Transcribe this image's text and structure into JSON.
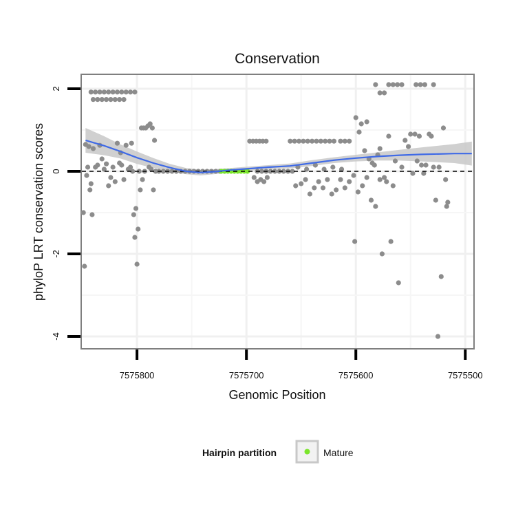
{
  "chart_data": {
    "type": "scatter",
    "title": "Conservation",
    "xlabel": "Genomic Position",
    "ylabel": "phyloP LRT conservation scores",
    "xlim": [
      7575851,
      7575492
    ],
    "ylim": [
      -4.3,
      2.35
    ],
    "x_reversed": true,
    "xticks": [
      7575800,
      7575700,
      7575600,
      7575500
    ],
    "xtick_labels": [
      "7575800",
      "7575700",
      "7575600",
      "7575500"
    ],
    "yticks": [
      2,
      0,
      -2,
      -4
    ],
    "ytick_labels": [
      "2",
      "0",
      "-2",
      "-4"
    ],
    "reference_line": {
      "y": 0,
      "style": "dashed"
    },
    "grid": true,
    "legend": {
      "title": "Hairpin partition",
      "entries": [
        {
          "label": "Mature",
          "color": "#7be52b"
        }
      ],
      "position": "bottom"
    },
    "colors": {
      "points": "#8c8c8c",
      "smooth": "#3f6ae6",
      "band": "#c8c8c8",
      "mature": "#7be52b"
    },
    "smooth_curve": [
      [
        7575847,
        0.75
      ],
      [
        7575830,
        0.62
      ],
      [
        7575815,
        0.48
      ],
      [
        7575800,
        0.33
      ],
      [
        7575785,
        0.2
      ],
      [
        7575770,
        0.09
      ],
      [
        7575755,
        0.0
      ],
      [
        7575742,
        -0.03
      ],
      [
        7575730,
        -0.01
      ],
      [
        7575715,
        0.03
      ],
      [
        7575700,
        0.06
      ],
      [
        7575680,
        0.1
      ],
      [
        7575660,
        0.13
      ],
      [
        7575640,
        0.2
      ],
      [
        7575620,
        0.27
      ],
      [
        7575600,
        0.32
      ],
      [
        7575580,
        0.36
      ],
      [
        7575560,
        0.39
      ],
      [
        7575540,
        0.41
      ],
      [
        7575510,
        0.43
      ],
      [
        7575494,
        0.43
      ]
    ],
    "band_upper": [
      [
        7575847,
        1.05
      ],
      [
        7575830,
        0.85
      ],
      [
        7575815,
        0.65
      ],
      [
        7575800,
        0.48
      ],
      [
        7575785,
        0.32
      ],
      [
        7575770,
        0.18
      ],
      [
        7575755,
        0.08
      ],
      [
        7575742,
        0.04
      ],
      [
        7575730,
        0.05
      ],
      [
        7575715,
        0.08
      ],
      [
        7575700,
        0.11
      ],
      [
        7575680,
        0.15
      ],
      [
        7575660,
        0.19
      ],
      [
        7575640,
        0.27
      ],
      [
        7575620,
        0.34
      ],
      [
        7575600,
        0.4
      ],
      [
        7575580,
        0.46
      ],
      [
        7575560,
        0.52
      ],
      [
        7575540,
        0.58
      ],
      [
        7575510,
        0.66
      ],
      [
        7575494,
        0.72
      ]
    ],
    "band_lower": [
      [
        7575847,
        0.45
      ],
      [
        7575830,
        0.39
      ],
      [
        7575815,
        0.31
      ],
      [
        7575800,
        0.18
      ],
      [
        7575785,
        0.08
      ],
      [
        7575770,
        0.0
      ],
      [
        7575755,
        -0.07
      ],
      [
        7575742,
        -0.1
      ],
      [
        7575730,
        -0.07
      ],
      [
        7575715,
        -0.02
      ],
      [
        7575700,
        0.01
      ],
      [
        7575680,
        0.05
      ],
      [
        7575660,
        0.07
      ],
      [
        7575640,
        0.13
      ],
      [
        7575620,
        0.2
      ],
      [
        7575600,
        0.24
      ],
      [
        7575580,
        0.26
      ],
      [
        7575560,
        0.26
      ],
      [
        7575540,
        0.24
      ],
      [
        7575510,
        0.2
      ],
      [
        7575494,
        0.14
      ]
    ],
    "points": [
      [
        7575842,
        1.92
      ],
      [
        7575838,
        1.92
      ],
      [
        7575834,
        1.92
      ],
      [
        7575830,
        1.92
      ],
      [
        7575826,
        1.92
      ],
      [
        7575822,
        1.92
      ],
      [
        7575818,
        1.92
      ],
      [
        7575814,
        1.92
      ],
      [
        7575810,
        1.92
      ],
      [
        7575806,
        1.92
      ],
      [
        7575802,
        1.92
      ],
      [
        7575840,
        1.74
      ],
      [
        7575836,
        1.74
      ],
      [
        7575832,
        1.74
      ],
      [
        7575828,
        1.74
      ],
      [
        7575824,
        1.74
      ],
      [
        7575820,
        1.74
      ],
      [
        7575816,
        1.74
      ],
      [
        7575812,
        1.74
      ],
      [
        7575849,
        -1.0
      ],
      [
        7575848,
        -2.3
      ],
      [
        7575847,
        0.65
      ],
      [
        7575846,
        -0.1
      ],
      [
        7575845,
        0.1
      ],
      [
        7575844,
        0.6
      ],
      [
        7575843,
        -0.45
      ],
      [
        7575842,
        -0.3
      ],
      [
        7575841,
        -1.05
      ],
      [
        7575840,
        0.55
      ],
      [
        7575838,
        0.1
      ],
      [
        7575836,
        0.15
      ],
      [
        7575834,
        0.63
      ],
      [
        7575832,
        0.3
      ],
      [
        7575830,
        0.05
      ],
      [
        7575828,
        0.18
      ],
      [
        7575826,
        -0.35
      ],
      [
        7575824,
        -0.15
      ],
      [
        7575822,
        0.1
      ],
      [
        7575820,
        -0.25
      ],
      [
        7575818,
        0.68
      ],
      [
        7575816,
        0.2
      ],
      [
        7575815,
        0.45
      ],
      [
        7575814,
        0.15
      ],
      [
        7575812,
        -0.2
      ],
      [
        7575810,
        0.63
      ],
      [
        7575808,
        0.05
      ],
      [
        7575806,
        0.1
      ],
      [
        7575805,
        0.68
      ],
      [
        7575804,
        0.0
      ],
      [
        7575803,
        -1.05
      ],
      [
        7575802,
        -1.6
      ],
      [
        7575801,
        -0.9
      ],
      [
        7575800,
        -2.25
      ],
      [
        7575799,
        -1.4
      ],
      [
        7575798,
        0.0
      ],
      [
        7575797,
        -0.45
      ],
      [
        7575796,
        1.05
      ],
      [
        7575795,
        -0.2
      ],
      [
        7575794,
        1.05
      ],
      [
        7575793,
        0.0
      ],
      [
        7575792,
        1.05
      ],
      [
        7575790,
        1.1
      ],
      [
        7575789,
        0.1
      ],
      [
        7575788,
        1.15
      ],
      [
        7575787,
        0.05
      ],
      [
        7575786,
        1.05
      ],
      [
        7575785,
        -0.45
      ],
      [
        7575784,
        0.75
      ],
      [
        7575783,
        0.0
      ],
      [
        7575780,
        0.0
      ],
      [
        7575776,
        0.0
      ],
      [
        7575772,
        0.0
      ],
      [
        7575768,
        0.0
      ],
      [
        7575764,
        0.0
      ],
      [
        7575760,
        0.0
      ],
      [
        7575756,
        0.0
      ],
      [
        7575752,
        0.0
      ],
      [
        7575748,
        0.0
      ],
      [
        7575744,
        0.0
      ],
      [
        7575740,
        0.0
      ],
      [
        7575736,
        0.0
      ],
      [
        7575732,
        0.0
      ],
      [
        7575728,
        0.0
      ],
      [
        7575724,
        0.0
      ],
      [
        7575720,
        0.0
      ],
      [
        7575690,
        0.0
      ],
      [
        7575686,
        0.0
      ],
      [
        7575682,
        0.0
      ],
      [
        7575678,
        0.0
      ],
      [
        7575674,
        0.0
      ],
      [
        7575670,
        0.0
      ],
      [
        7575666,
        0.0
      ],
      [
        7575662,
        0.0
      ],
      [
        7575658,
        0.0
      ],
      [
        7575697,
        0.73
      ],
      [
        7575694,
        0.73
      ],
      [
        7575691,
        0.73
      ],
      [
        7575688,
        0.73
      ],
      [
        7575685,
        0.73
      ],
      [
        7575682,
        0.73
      ],
      [
        7575693,
        -0.15
      ],
      [
        7575690,
        -0.25
      ],
      [
        7575687,
        -0.2
      ],
      [
        7575684,
        -0.25
      ],
      [
        7575681,
        -0.15
      ],
      [
        7575660,
        0.73
      ],
      [
        7575656,
        0.73
      ],
      [
        7575652,
        0.73
      ],
      [
        7575648,
        0.73
      ],
      [
        7575644,
        0.73
      ],
      [
        7575640,
        0.73
      ],
      [
        7575636,
        0.73
      ],
      [
        7575632,
        0.73
      ],
      [
        7575628,
        0.73
      ],
      [
        7575624,
        0.73
      ],
      [
        7575620,
        0.73
      ],
      [
        7575614,
        0.73
      ],
      [
        7575610,
        0.73
      ],
      [
        7575606,
        0.73
      ],
      [
        7575655,
        -0.35
      ],
      [
        7575650,
        -0.3
      ],
      [
        7575646,
        -0.2
      ],
      [
        7575642,
        -0.55
      ],
      [
        7575638,
        -0.4
      ],
      [
        7575634,
        -0.25
      ],
      [
        7575630,
        -0.4
      ],
      [
        7575626,
        -0.2
      ],
      [
        7575622,
        -0.55
      ],
      [
        7575618,
        -0.45
      ],
      [
        7575614,
        -0.2
      ],
      [
        7575610,
        -0.4
      ],
      [
        7575606,
        -0.25
      ],
      [
        7575602,
        -0.1
      ],
      [
        7575598,
        -0.5
      ],
      [
        7575594,
        -0.35
      ],
      [
        7575590,
        -0.15
      ],
      [
        7575586,
        -0.7
      ],
      [
        7575582,
        -0.85
      ],
      [
        7575578,
        -0.2
      ],
      [
        7575653,
        0.1
      ],
      [
        7575645,
        0.05
      ],
      [
        7575637,
        0.15
      ],
      [
        7575629,
        0.05
      ],
      [
        7575621,
        0.1
      ],
      [
        7575613,
        0.05
      ],
      [
        7575601,
        -1.7
      ],
      [
        7575600,
        1.3
      ],
      [
        7575597,
        0.95
      ],
      [
        7575595,
        1.15
      ],
      [
        7575592,
        0.5
      ],
      [
        7575590,
        1.2
      ],
      [
        7575588,
        0.3
      ],
      [
        7575585,
        0.2
      ],
      [
        7575583,
        0.15
      ],
      [
        7575580,
        0.4
      ],
      [
        7575578,
        0.55
      ],
      [
        7575576,
        -2.0
      ],
      [
        7575574,
        -0.15
      ],
      [
        7575572,
        -0.25
      ],
      [
        7575570,
        0.85
      ],
      [
        7575568,
        -1.7
      ],
      [
        7575566,
        -0.35
      ],
      [
        7575564,
        0.25
      ],
      [
        7575561,
        -2.7
      ],
      [
        7575558,
        0.1
      ],
      [
        7575555,
        0.75
      ],
      [
        7575552,
        0.6
      ],
      [
        7575550,
        0.9
      ],
      [
        7575548,
        -0.05
      ],
      [
        7575546,
        0.9
      ],
      [
        7575544,
        0.25
      ],
      [
        7575542,
        0.85
      ],
      [
        7575540,
        0.15
      ],
      [
        7575538,
        -0.05
      ],
      [
        7575536,
        0.15
      ],
      [
        7575533,
        0.9
      ],
      [
        7575531,
        0.85
      ],
      [
        7575529,
        0.1
      ],
      [
        7575527,
        -0.7
      ],
      [
        7575525,
        -4.0
      ],
      [
        7575524,
        0.1
      ],
      [
        7575522,
        -2.55
      ],
      [
        7575520,
        1.05
      ],
      [
        7575518,
        -0.2
      ],
      [
        7575517,
        -0.85
      ],
      [
        7575516,
        -0.75
      ],
      [
        7575582,
        2.1
      ],
      [
        7575578,
        1.9
      ],
      [
        7575574,
        1.9
      ],
      [
        7575570,
        2.1
      ],
      [
        7575566,
        2.1
      ],
      [
        7575562,
        2.1
      ],
      [
        7575558,
        2.1
      ],
      [
        7575545,
        2.1
      ],
      [
        7575541,
        2.1
      ],
      [
        7575537,
        2.1
      ],
      [
        7575529,
        2.1
      ]
    ],
    "mature_points": [
      [
        7575723,
        0.0
      ],
      [
        7575720,
        0.0
      ],
      [
        7575717,
        0.0
      ],
      [
        7575714,
        0.0
      ],
      [
        7575711,
        0.0
      ],
      [
        7575708,
        0.0
      ],
      [
        7575705,
        0.0
      ],
      [
        7575702,
        0.0
      ],
      [
        7575699,
        0.0
      ]
    ]
  }
}
